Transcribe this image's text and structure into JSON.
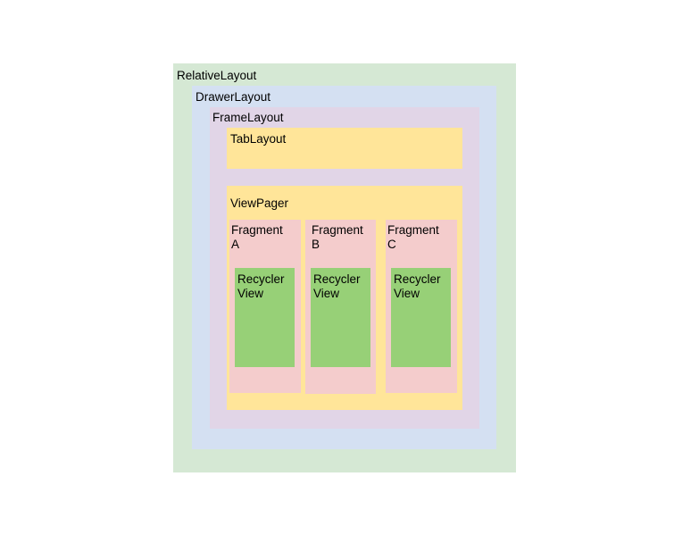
{
  "colors": {
    "relative_layout": "#d5e8d4",
    "drawer_layout": "#d4e0f2",
    "frame_layout": "#e1d5e7",
    "tab_layout": "#ffe599",
    "view_pager": "#ffe599",
    "fragment": "#f4cccc",
    "recycler_view": "#97d077"
  },
  "layouts": {
    "relative_layout": "RelativeLayout",
    "drawer_layout": "DrawerLayout",
    "frame_layout": "FrameLayout",
    "tab_layout": "TabLayout",
    "view_pager": "ViewPager"
  },
  "fragments": [
    {
      "label": "Fragment\nA",
      "recycler_label": "Recycler\nView"
    },
    {
      "label": "Fragment\nB",
      "recycler_label": "Recycler\nView"
    },
    {
      "label": "Fragment\nC",
      "recycler_label": "Recycler\nView"
    }
  ]
}
